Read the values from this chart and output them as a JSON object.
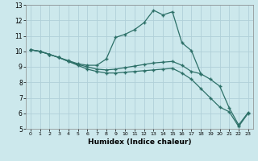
{
  "xlabel": "Humidex (Indice chaleur)",
  "background_color": "#cce8ec",
  "grid_color": "#b0d0d8",
  "line_color": "#2d7068",
  "xlim": [
    -0.5,
    23.5
  ],
  "ylim": [
    5,
    13
  ],
  "xticks": [
    0,
    1,
    2,
    3,
    4,
    5,
    6,
    7,
    8,
    9,
    10,
    11,
    12,
    13,
    14,
    15,
    16,
    17,
    18,
    19,
    20,
    21,
    22,
    23
  ],
  "yticks": [
    5,
    6,
    7,
    8,
    9,
    10,
    11,
    12,
    13
  ],
  "lines": [
    {
      "x": [
        0,
        1,
        2,
        3,
        4,
        5,
        6,
        7,
        8,
        9,
        10,
        11,
        12,
        13,
        14,
        15,
        16,
        17,
        18
      ],
      "y": [
        10.1,
        10.0,
        9.8,
        9.6,
        9.4,
        9.2,
        9.1,
        9.1,
        9.5,
        10.9,
        11.1,
        11.4,
        11.85,
        12.65,
        12.35,
        12.55,
        10.55,
        10.05,
        8.55
      ]
    },
    {
      "x": [
        0,
        1,
        2,
        3,
        4,
        5,
        6,
        7,
        8,
        9,
        10,
        11,
        12,
        13,
        14,
        15,
        16,
        17,
        18,
        19,
        20,
        21,
        22,
        23
      ],
      "y": [
        10.1,
        10.0,
        9.8,
        9.6,
        9.35,
        9.15,
        9.0,
        8.85,
        8.8,
        8.85,
        8.95,
        9.05,
        9.15,
        9.25,
        9.3,
        9.35,
        9.1,
        8.7,
        8.55,
        8.2,
        7.75,
        6.35,
        5.25,
        6.05
      ]
    },
    {
      "x": [
        0,
        1,
        2,
        3,
        4,
        5,
        6,
        7,
        8,
        9,
        10,
        11,
        12,
        13,
        14,
        15,
        16,
        17,
        18,
        19,
        20,
        21,
        22,
        23
      ],
      "y": [
        10.1,
        10.0,
        9.8,
        9.6,
        9.35,
        9.1,
        8.85,
        8.7,
        8.6,
        8.6,
        8.65,
        8.7,
        8.75,
        8.8,
        8.85,
        8.9,
        8.6,
        8.2,
        7.6,
        7.0,
        6.4,
        6.1,
        5.15,
        6.0
      ]
    }
  ]
}
